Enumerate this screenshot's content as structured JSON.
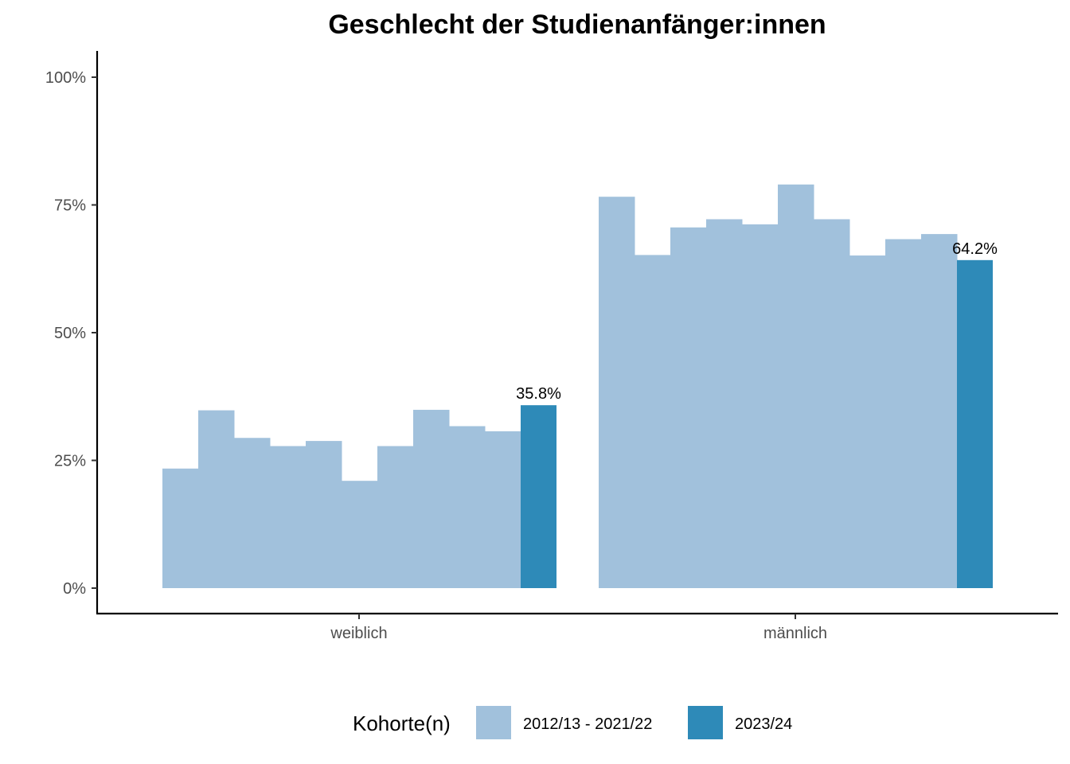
{
  "chart_data": {
    "type": "bar",
    "title": "Geschlecht der Studienanfänger:innen",
    "xlabel": "",
    "ylabel": "",
    "categories": [
      "weiblich",
      "männlich"
    ],
    "ylim": [
      0,
      1.05
    ],
    "y_ticks": [
      0,
      0.25,
      0.5,
      0.75,
      1.0
    ],
    "y_tick_labels": [
      "0%",
      "25%",
      "50%",
      "75%",
      "100%"
    ],
    "historic_series": {
      "legend_label": "2012/13 - 2021/22",
      "color": "#a1c1dc",
      "values": {
        "weiblich": [
          0.234,
          0.348,
          0.294,
          0.278,
          0.288,
          0.21,
          0.278,
          0.349,
          0.317,
          0.307
        ],
        "männlich": [
          0.766,
          0.652,
          0.706,
          0.722,
          0.712,
          0.79,
          0.722,
          0.651,
          0.683,
          0.693
        ]
      }
    },
    "current_series": {
      "legend_label": "2023/24",
      "color": "#2e8ab8",
      "values": {
        "weiblich": 0.358,
        "männlich": 0.642
      },
      "labels": {
        "weiblich": "35.8%",
        "männlich": "64.2%"
      }
    },
    "legend": {
      "title": "Kohorte(n)",
      "position": "bottom"
    },
    "grid": false
  }
}
